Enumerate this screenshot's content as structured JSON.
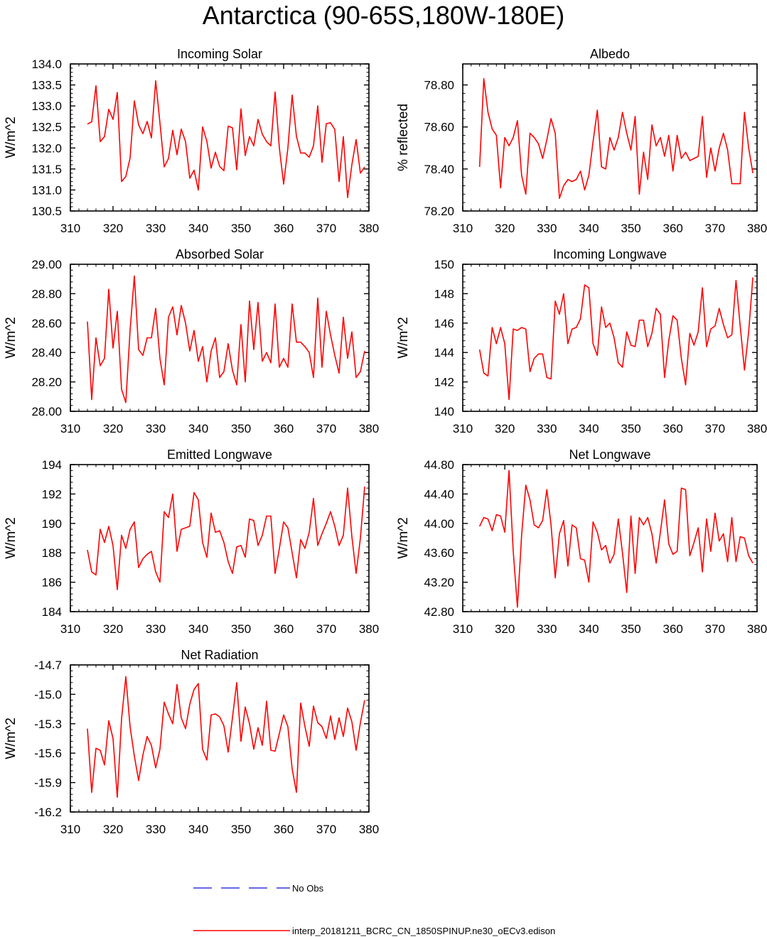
{
  "title": "Antarctica (90-65S,180W-180E)",
  "colors": {
    "model": "#ff0000",
    "obs": "#3333dd",
    "axis": "#000000"
  },
  "legend": [
    {
      "label": "No Obs",
      "style": "dashed",
      "color": "#3333dd"
    },
    {
      "label": "interp_20181211_BCRC_CN_1850SPINUP.ne30_oECv3.edison",
      "style": "solid",
      "color": "#ff0000"
    }
  ],
  "chart_data": [
    {
      "type": "line",
      "title": "Incoming Solar",
      "xlabel": "",
      "ylabel": "W/m^2",
      "xlim": [
        310,
        380
      ],
      "ylim": [
        130.5,
        134.0
      ],
      "xticks": [
        310,
        320,
        330,
        340,
        350,
        360,
        370,
        380
      ],
      "yticks": [
        130.5,
        131.0,
        131.5,
        132.0,
        132.5,
        133.0,
        133.5,
        134.0
      ],
      "ydecimals": 1,
      "x": [
        314,
        315,
        316,
        317,
        318,
        319,
        320,
        321,
        322,
        323,
        324,
        325,
        326,
        327,
        328,
        329,
        330,
        331,
        332,
        333,
        334,
        335,
        336,
        337,
        338,
        339,
        340,
        341,
        342,
        343,
        344,
        345,
        346,
        347,
        348,
        349,
        350,
        351,
        352,
        353,
        354,
        355,
        356,
        357,
        358,
        359,
        360,
        361,
        362,
        363,
        364,
        365,
        366,
        367,
        368,
        369,
        370,
        371,
        372,
        373,
        374,
        375,
        376,
        377,
        378,
        379
      ],
      "y": [
        132.57,
        132.62,
        133.48,
        132.15,
        132.27,
        132.92,
        132.68,
        133.32,
        131.2,
        131.32,
        131.76,
        133.12,
        132.55,
        132.34,
        132.63,
        132.24,
        133.6,
        132.6,
        131.55,
        131.75,
        132.42,
        131.84,
        132.45,
        132.15,
        131.28,
        131.47,
        131.0,
        132.5,
        132.16,
        131.52,
        131.9,
        131.56,
        131.46,
        132.52,
        132.48,
        131.48,
        132.93,
        131.82,
        132.27,
        132.05,
        132.68,
        132.33,
        132.15,
        132.05,
        133.33,
        132.0,
        131.14,
        132.0,
        133.26,
        132.28,
        131.88,
        131.88,
        131.78,
        132.05,
        133.0,
        131.66,
        132.58,
        132.6,
        132.44,
        131.2,
        132.27,
        130.82,
        131.6,
        132.2,
        131.4,
        131.55
      ]
    },
    {
      "type": "line",
      "title": "Albedo",
      "xlabel": "",
      "ylabel": "% reflected",
      "xlim": [
        310,
        380
      ],
      "ylim": [
        78.2,
        78.9
      ],
      "xticks": [
        310,
        320,
        330,
        340,
        350,
        360,
        370,
        380
      ],
      "yticks": [
        78.2,
        78.4,
        78.6,
        78.8
      ],
      "ydecimals": 2,
      "x": [
        314,
        315,
        316,
        317,
        318,
        319,
        320,
        321,
        322,
        323,
        324,
        325,
        326,
        327,
        328,
        329,
        330,
        331,
        332,
        333,
        334,
        335,
        336,
        337,
        338,
        339,
        340,
        341,
        342,
        343,
        344,
        345,
        346,
        347,
        348,
        349,
        350,
        351,
        352,
        353,
        354,
        355,
        356,
        357,
        358,
        359,
        360,
        361,
        362,
        363,
        364,
        365,
        366,
        367,
        368,
        369,
        370,
        371,
        372,
        373,
        374,
        375,
        376,
        377,
        378,
        379
      ],
      "y": [
        78.41,
        78.83,
        78.67,
        78.59,
        78.56,
        78.31,
        78.55,
        78.51,
        78.55,
        78.63,
        78.37,
        78.28,
        78.57,
        78.55,
        78.52,
        78.45,
        78.54,
        78.64,
        78.57,
        78.26,
        78.32,
        78.35,
        78.34,
        78.35,
        78.39,
        78.3,
        78.37,
        78.53,
        78.68,
        78.41,
        78.4,
        78.55,
        78.49,
        78.55,
        78.67,
        78.57,
        78.49,
        78.65,
        78.28,
        78.48,
        78.35,
        78.61,
        78.51,
        78.55,
        78.46,
        78.56,
        78.39,
        78.56,
        78.45,
        78.48,
        78.44,
        78.45,
        78.46,
        78.65,
        78.36,
        78.5,
        78.39,
        78.5,
        78.57,
        78.49,
        78.33,
        78.33,
        78.33,
        78.67,
        78.5,
        78.38
      ]
    },
    {
      "type": "line",
      "title": "Absorbed Solar",
      "xlabel": "",
      "ylabel": "W/m^2",
      "xlim": [
        310,
        380
      ],
      "ylim": [
        28.0,
        29.0
      ],
      "xticks": [
        310,
        320,
        330,
        340,
        350,
        360,
        370,
        380
      ],
      "yticks": [
        28.0,
        28.2,
        28.4,
        28.6,
        28.8,
        29.0
      ],
      "ydecimals": 2,
      "x": [
        314,
        315,
        316,
        317,
        318,
        319,
        320,
        321,
        322,
        323,
        324,
        325,
        326,
        327,
        328,
        329,
        330,
        331,
        332,
        333,
        334,
        335,
        336,
        337,
        338,
        339,
        340,
        341,
        342,
        343,
        344,
        345,
        346,
        347,
        348,
        349,
        350,
        351,
        352,
        353,
        354,
        355,
        356,
        357,
        358,
        359,
        360,
        361,
        362,
        363,
        364,
        365,
        366,
        367,
        368,
        369,
        370,
        371,
        372,
        373,
        374,
        375,
        376,
        377,
        378,
        379
      ],
      "y": [
        28.61,
        28.08,
        28.5,
        28.31,
        28.36,
        28.83,
        28.43,
        28.68,
        28.15,
        28.06,
        28.55,
        28.92,
        28.42,
        28.38,
        28.5,
        28.5,
        28.7,
        28.36,
        28.18,
        28.64,
        28.71,
        28.52,
        28.72,
        28.6,
        28.41,
        28.55,
        28.34,
        28.44,
        28.2,
        28.41,
        28.5,
        28.23,
        28.27,
        28.46,
        28.28,
        28.18,
        28.59,
        28.2,
        28.75,
        28.42,
        28.74,
        28.34,
        28.4,
        28.33,
        28.73,
        28.3,
        28.36,
        28.3,
        28.73,
        28.47,
        28.47,
        28.44,
        28.4,
        28.23,
        28.77,
        28.3,
        28.68,
        28.52,
        28.38,
        28.26,
        28.64,
        28.36,
        28.54,
        28.23,
        28.27,
        28.41
      ]
    },
    {
      "type": "line",
      "title": "Incoming Longwave",
      "xlabel": "",
      "ylabel": "W/m^2",
      "xlim": [
        310,
        380
      ],
      "ylim": [
        140,
        150
      ],
      "xticks": [
        310,
        320,
        330,
        340,
        350,
        360,
        370,
        380
      ],
      "yticks": [
        140,
        142,
        144,
        146,
        148,
        150
      ],
      "ydecimals": 0,
      "x": [
        314,
        315,
        316,
        317,
        318,
        319,
        320,
        321,
        322,
        323,
        324,
        325,
        326,
        327,
        328,
        329,
        330,
        331,
        332,
        333,
        334,
        335,
        336,
        337,
        338,
        339,
        340,
        341,
        342,
        343,
        344,
        345,
        346,
        347,
        348,
        349,
        350,
        351,
        352,
        353,
        354,
        355,
        356,
        357,
        358,
        359,
        360,
        361,
        362,
        363,
        364,
        365,
        366,
        367,
        368,
        369,
        370,
        371,
        372,
        373,
        374,
        375,
        376,
        377,
        378,
        379
      ],
      "y": [
        144.2,
        142.6,
        142.4,
        145.7,
        144.6,
        145.7,
        144.6,
        140.8,
        145.6,
        145.5,
        145.7,
        145.6,
        142.7,
        143.6,
        143.9,
        143.9,
        142.3,
        142.2,
        147.5,
        146.6,
        148.0,
        144.6,
        145.6,
        145.7,
        146.3,
        148.6,
        148.4,
        144.6,
        143.8,
        147.1,
        145.7,
        146.0,
        145.0,
        143.3,
        143.0,
        145.4,
        144.5,
        144.4,
        146.2,
        146.2,
        144.4,
        145.3,
        147.0,
        146.6,
        142.3,
        144.8,
        146.5,
        146.2,
        143.6,
        141.8,
        145.3,
        144.5,
        145.4,
        148.4,
        144.4,
        145.6,
        145.8,
        147.0,
        145.9,
        145.0,
        145.2,
        148.9,
        145.8,
        142.8,
        145.4,
        149.1
      ]
    },
    {
      "type": "line",
      "title": "Emitted Longwave",
      "xlabel": "",
      "ylabel": "W/m^2",
      "xlim": [
        310,
        380
      ],
      "ylim": [
        184,
        194
      ],
      "xticks": [
        310,
        320,
        330,
        340,
        350,
        360,
        370,
        380
      ],
      "yticks": [
        184,
        186,
        188,
        190,
        192,
        194
      ],
      "ydecimals": 0,
      "x": [
        314,
        315,
        316,
        317,
        318,
        319,
        320,
        321,
        322,
        323,
        324,
        325,
        326,
        327,
        328,
        329,
        330,
        331,
        332,
        333,
        334,
        335,
        336,
        337,
        338,
        339,
        340,
        341,
        342,
        343,
        344,
        345,
        346,
        347,
        348,
        349,
        350,
        351,
        352,
        353,
        354,
        355,
        356,
        357,
        358,
        359,
        360,
        361,
        362,
        363,
        364,
        365,
        366,
        367,
        368,
        369,
        370,
        371,
        372,
        373,
        374,
        375,
        376,
        377,
        378,
        379
      ],
      "y": [
        188.2,
        186.7,
        186.5,
        189.6,
        188.7,
        189.8,
        188.5,
        185.5,
        189.2,
        188.3,
        189.6,
        190.1,
        187.0,
        187.6,
        187.9,
        188.1,
        186.7,
        186.0,
        190.8,
        190.4,
        192.0,
        188.1,
        189.6,
        189.7,
        189.8,
        192.1,
        191.6,
        188.7,
        187.7,
        190.7,
        189.4,
        189.5,
        188.7,
        187.4,
        186.6,
        188.4,
        188.5,
        187.7,
        190.3,
        190.2,
        188.5,
        189.2,
        190.5,
        190.5,
        186.6,
        188.3,
        190.1,
        189.7,
        188.0,
        186.3,
        188.9,
        188.3,
        189.4,
        191.7,
        188.5,
        189.3,
        190.0,
        190.8,
        189.8,
        188.5,
        189.2,
        192.4,
        189.1,
        186.6,
        189.0,
        192.5
      ]
    },
    {
      "type": "line",
      "title": "Net Longwave",
      "xlabel": "",
      "ylabel": "W/m^2",
      "xlim": [
        310,
        380
      ],
      "ylim": [
        42.8,
        44.8
      ],
      "xticks": [
        310,
        320,
        330,
        340,
        350,
        360,
        370,
        380
      ],
      "yticks": [
        42.8,
        43.2,
        43.6,
        44.0,
        44.4,
        44.8
      ],
      "ydecimals": 2,
      "x": [
        314,
        315,
        316,
        317,
        318,
        319,
        320,
        321,
        322,
        323,
        324,
        325,
        326,
        327,
        328,
        329,
        330,
        331,
        332,
        333,
        334,
        335,
        336,
        337,
        338,
        339,
        340,
        341,
        342,
        343,
        344,
        345,
        346,
        347,
        348,
        349,
        350,
        351,
        352,
        353,
        354,
        355,
        356,
        357,
        358,
        359,
        360,
        361,
        362,
        363,
        364,
        365,
        366,
        367,
        368,
        369,
        370,
        371,
        372,
        373,
        374,
        375,
        376,
        377,
        378,
        379
      ],
      "y": [
        43.96,
        44.08,
        44.06,
        43.9,
        44.12,
        44.1,
        43.88,
        44.72,
        43.62,
        42.86,
        43.84,
        44.52,
        44.32,
        43.98,
        43.94,
        44.04,
        44.46,
        43.98,
        43.26,
        43.86,
        44.04,
        43.42,
        43.98,
        43.94,
        43.52,
        43.5,
        43.2,
        44.02,
        43.88,
        43.64,
        43.7,
        43.46,
        43.58,
        44.06,
        43.6,
        43.06,
        44.1,
        43.32,
        44.08,
        43.98,
        44.08,
        43.86,
        43.46,
        43.88,
        44.32,
        43.72,
        43.58,
        43.62,
        44.48,
        44.46,
        43.56,
        43.74,
        43.94,
        43.34,
        44.06,
        43.62,
        44.14,
        43.76,
        43.86,
        43.48,
        44.08,
        43.48,
        43.82,
        43.8,
        43.56,
        43.46
      ]
    },
    {
      "type": "line",
      "title": "Net Radiation",
      "xlabel": "",
      "ylabel": "W/m^2",
      "xlim": [
        310,
        380
      ],
      "ylim": [
        -16.2,
        -14.7
      ],
      "xticks": [
        310,
        320,
        330,
        340,
        350,
        360,
        370,
        380
      ],
      "yticks": [
        -16.2,
        -15.9,
        -15.6,
        -15.3,
        -15.0,
        -14.7
      ],
      "ydecimals": 1,
      "x": [
        314,
        315,
        316,
        317,
        318,
        319,
        320,
        321,
        322,
        323,
        324,
        325,
        326,
        327,
        328,
        329,
        330,
        331,
        332,
        333,
        334,
        335,
        336,
        337,
        338,
        339,
        340,
        341,
        342,
        343,
        344,
        345,
        346,
        347,
        348,
        349,
        350,
        351,
        352,
        353,
        354,
        355,
        356,
        357,
        358,
        359,
        360,
        361,
        362,
        363,
        364,
        365,
        366,
        367,
        368,
        369,
        370,
        371,
        372,
        373,
        374,
        375,
        376,
        377,
        378,
        379
      ],
      "y": [
        -15.35,
        -16.0,
        -15.55,
        -15.57,
        -15.72,
        -15.27,
        -15.45,
        -16.05,
        -15.25,
        -14.82,
        -15.33,
        -15.63,
        -15.88,
        -15.62,
        -15.43,
        -15.52,
        -15.75,
        -15.56,
        -15.08,
        -15.2,
        -15.3,
        -14.9,
        -15.24,
        -15.35,
        -15.1,
        -14.95,
        -14.89,
        -15.56,
        -15.67,
        -15.21,
        -15.2,
        -15.23,
        -15.32,
        -15.59,
        -15.24,
        -14.88,
        -15.48,
        -15.13,
        -15.3,
        -15.56,
        -15.34,
        -15.52,
        -15.07,
        -15.57,
        -15.58,
        -15.4,
        -15.21,
        -15.33,
        -15.76,
        -16.0,
        -15.09,
        -15.33,
        -15.53,
        -15.12,
        -15.29,
        -15.33,
        -15.45,
        -15.22,
        -15.46,
        -15.24,
        -15.43,
        -15.14,
        -15.28,
        -15.57,
        -15.29,
        -15.06
      ]
    }
  ]
}
